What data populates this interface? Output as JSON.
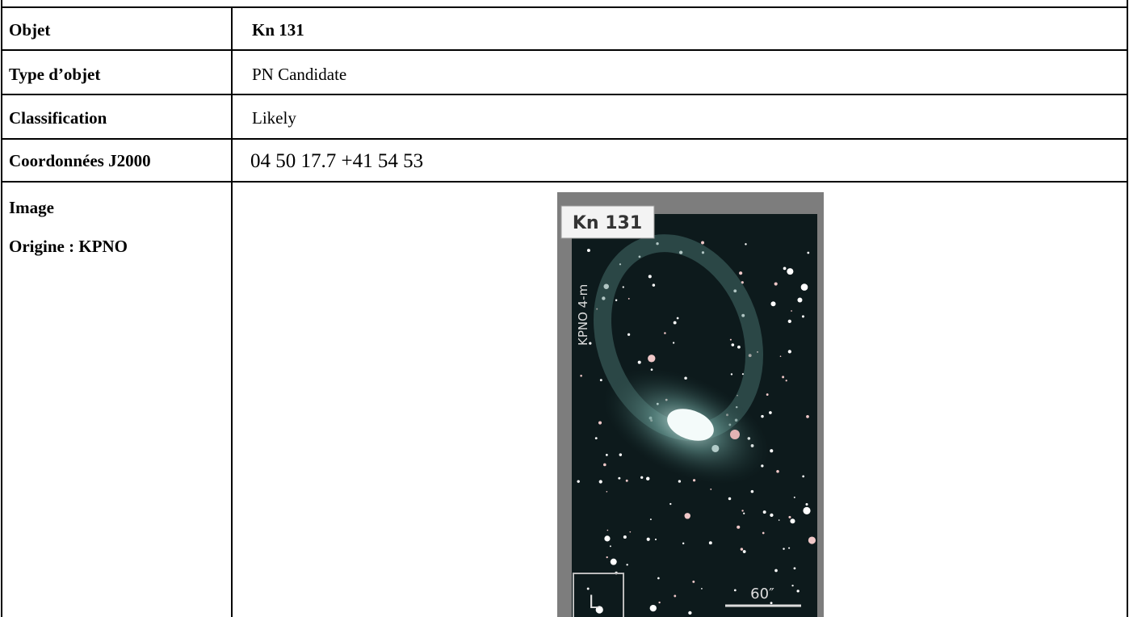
{
  "table": {
    "rows": [
      [
        "Objet",
        "Kn 131"
      ],
      [
        "Type d’objet",
        "PN Candidate"
      ],
      [
        "Classification",
        "Likely"
      ],
      [
        "Coordonnées J2000",
        "04 50 17.7 +41 54 53"
      ]
    ]
  },
  "image_row": {
    "label": [
      "Image",
      "Origine : KPNO"
    ],
    "image": {
      "name": "Kn 131",
      "telescope": "KPNO 4-m",
      "filter": "L",
      "scale": "60″"
    }
  }
}
